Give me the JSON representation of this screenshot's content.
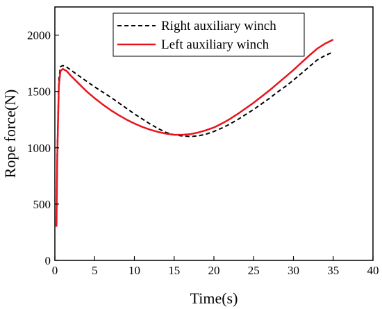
{
  "chart_data": {
    "type": "line",
    "xlabel": "Time(s)",
    "ylabel": "Rope force(N)",
    "xlim": [
      0,
      40
    ],
    "ylim": [
      0,
      2250
    ],
    "xticks": [
      0,
      5,
      10,
      15,
      20,
      25,
      30,
      35,
      40
    ],
    "yticks": [
      0,
      500,
      1000,
      1500,
      2000
    ],
    "grid": false,
    "legend_position": "top-center",
    "series": [
      {
        "name": "Right auxiliary winch",
        "color": "#000000",
        "line_style": "dashed",
        "x": [
          0.2,
          0.3,
          0.5,
          0.7,
          1.0,
          1.5,
          2,
          3,
          4,
          5,
          6,
          7,
          8,
          9,
          10,
          11,
          12,
          13,
          14,
          15,
          16,
          17,
          18,
          19,
          20,
          21,
          22,
          23,
          24,
          25,
          26,
          27,
          28,
          29,
          30,
          31,
          32,
          33,
          34,
          35
        ],
        "y": [
          300,
          950,
          1600,
          1720,
          1730,
          1715,
          1690,
          1640,
          1590,
          1540,
          1495,
          1450,
          1400,
          1350,
          1300,
          1255,
          1210,
          1170,
          1135,
          1115,
          1105,
          1100,
          1105,
          1120,
          1145,
          1175,
          1210,
          1250,
          1295,
          1340,
          1390,
          1440,
          1495,
          1545,
          1600,
          1660,
          1720,
          1780,
          1820,
          1850
        ]
      },
      {
        "name": "Left auxiliary winch",
        "color": "#e8141c",
        "line_style": "solid",
        "x": [
          0.2,
          0.3,
          0.5,
          0.7,
          1.0,
          1.5,
          2,
          3,
          4,
          5,
          6,
          7,
          8,
          9,
          10,
          11,
          12,
          13,
          14,
          15,
          16,
          17,
          18,
          19,
          20,
          21,
          22,
          23,
          24,
          25,
          26,
          27,
          28,
          29,
          30,
          31,
          32,
          33,
          34,
          35
        ],
        "y": [
          300,
          900,
          1550,
          1680,
          1700,
          1680,
          1640,
          1570,
          1500,
          1440,
          1385,
          1335,
          1290,
          1250,
          1215,
          1185,
          1160,
          1140,
          1125,
          1115,
          1115,
          1120,
          1135,
          1155,
          1180,
          1215,
          1255,
          1300,
          1350,
          1400,
          1455,
          1510,
          1570,
          1630,
          1690,
          1755,
          1820,
          1880,
          1925,
          1960
        ]
      }
    ]
  }
}
